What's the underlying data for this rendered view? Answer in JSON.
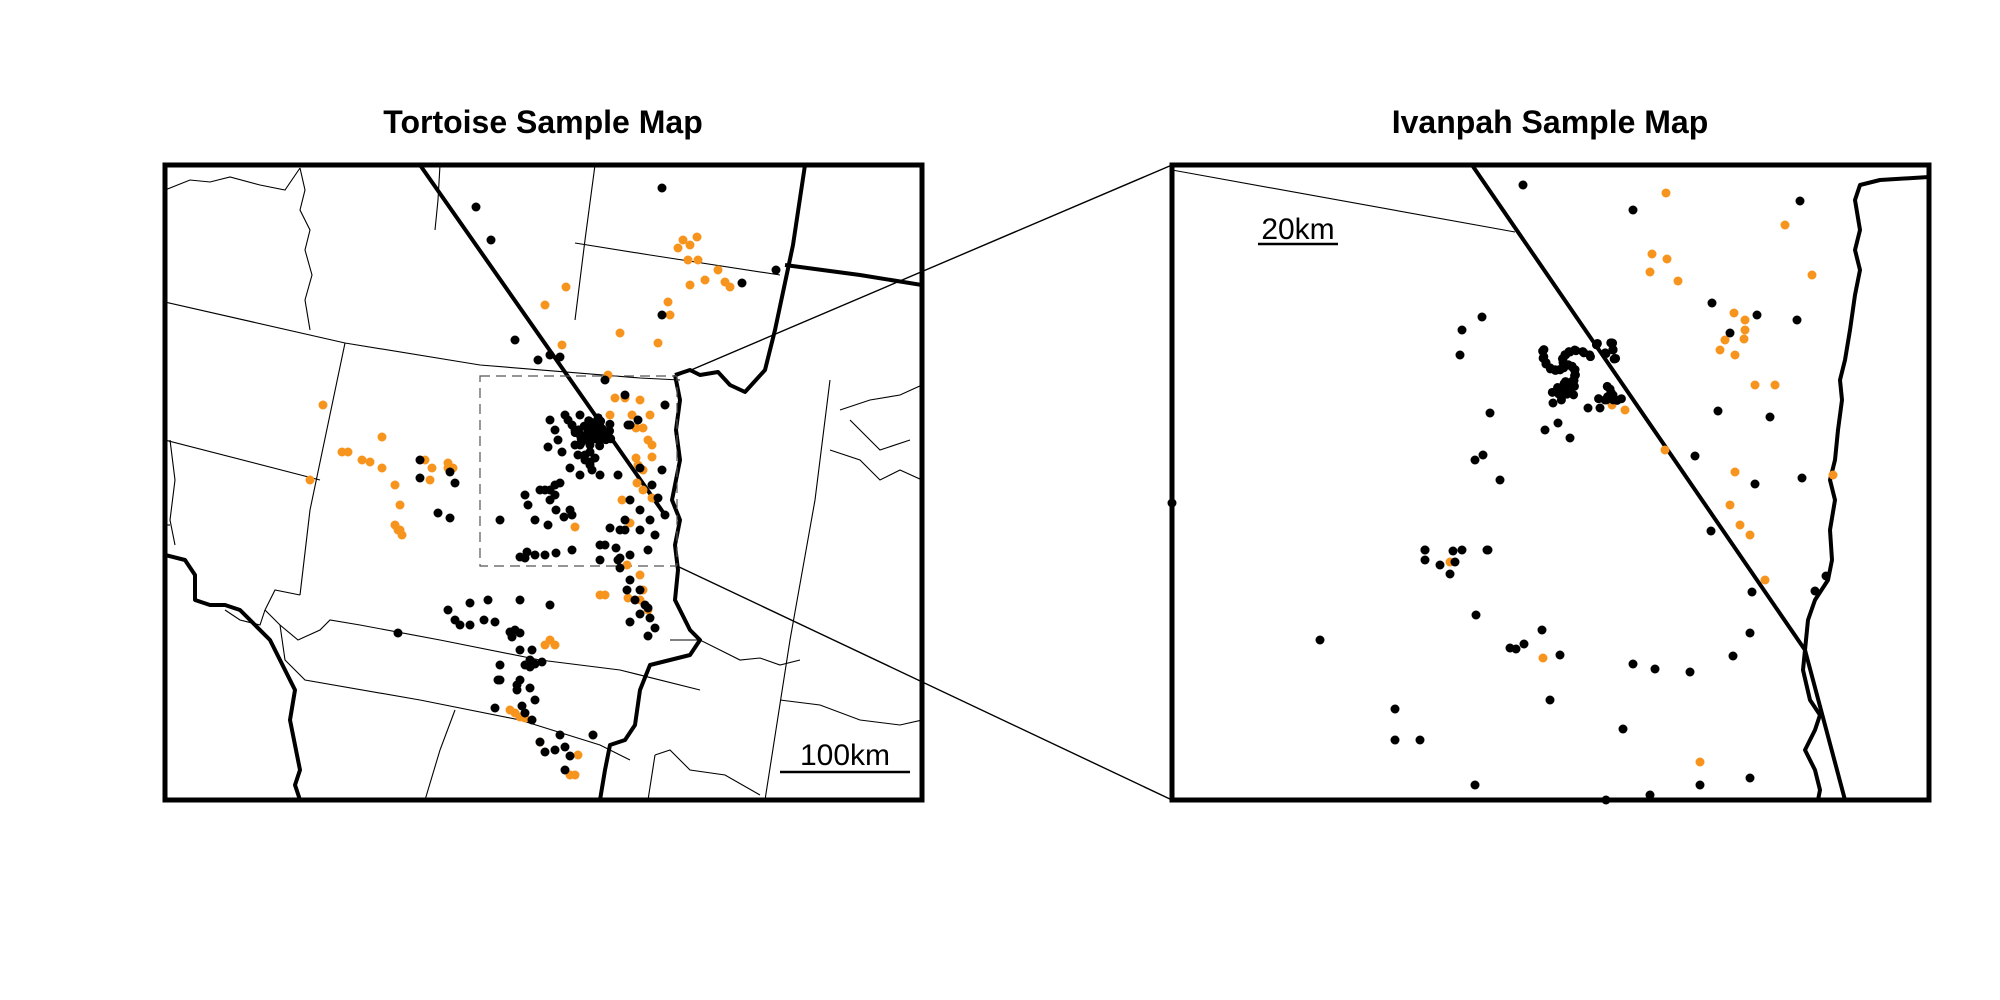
{
  "left_map": {
    "title": "Tortoise Sample Map",
    "scale_label": "100km"
  },
  "right_map": {
    "title": "Ivanpah Sample Map",
    "scale_label": "20km"
  },
  "colors": {
    "black_points": "#000000",
    "orange_points": "#f7941d",
    "frame": "#000000"
  }
}
